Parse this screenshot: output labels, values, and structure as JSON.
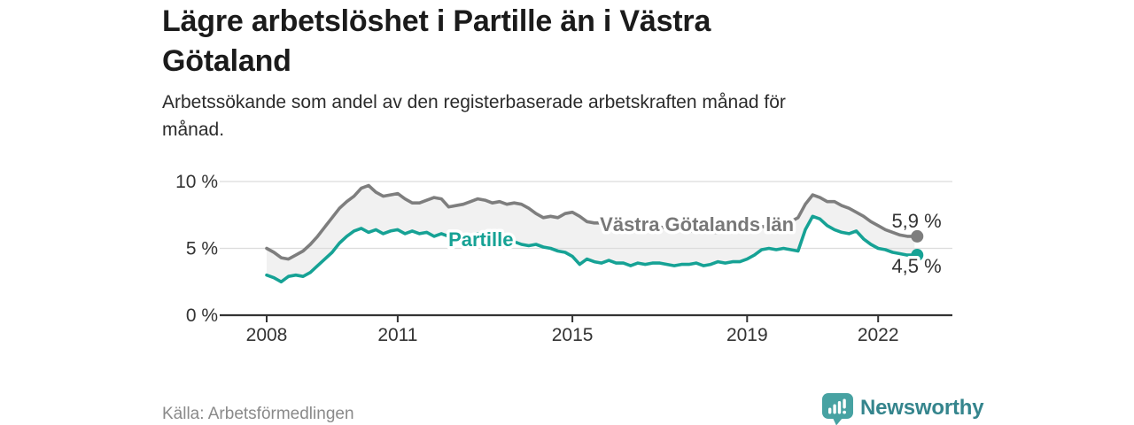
{
  "header": {
    "title": "Lägre arbetslöshet i Partille än i Västra\nGötaland",
    "subtitle": "Arbetssökande som andel av den registerbaserade arbetskraften månad för\nmånad."
  },
  "footer": {
    "source": "Källa: Arbetsförmedlingen",
    "brand": "Newsworthy",
    "logo_icon": "newsworthy-speech-bubble-bar-chart-icon"
  },
  "colors": {
    "accent_teal": "#16a295",
    "line_gray": "#7e7e7e",
    "label_gray": "#787878",
    "band_fill": "#f1f1f1",
    "gridline": "#dcdcdc",
    "axis": "#333333",
    "brand_teal_icon": "#47a2a2",
    "brand_teal_text": "#35858d"
  },
  "chart_data": {
    "type": "line",
    "title": "Lägre arbetslöshet i Partille än i Västra Götaland",
    "subtitle": "Arbetssökande som andel av den registerbaserade arbetskraften månad för månad.",
    "x_start": 2008.0,
    "x_step": 0.16667,
    "x_axis": {
      "ticks": [
        2008,
        2011,
        2015,
        2019,
        2022
      ],
      "tick_labels": [
        "2008",
        "2011",
        "2015",
        "2019",
        "2022"
      ],
      "min": 2008,
      "max": 2023.1
    },
    "y_axis": {
      "ticks": [
        0,
        5,
        10
      ],
      "tick_labels": [
        "0 %",
        "5 %",
        "10 %"
      ],
      "min": 0,
      "max": 10.3,
      "grid": true
    },
    "legend_position": "inline-labels",
    "band_fill": "#f1f1f1",
    "series": [
      {
        "name": "Västra Götalands län",
        "color": "#7e7e7e",
        "end_value": 5.9,
        "end_label": "5,9 %",
        "values": [
          5.0,
          4.7,
          4.3,
          4.2,
          4.5,
          4.8,
          5.3,
          5.9,
          6.6,
          7.3,
          8.0,
          8.5,
          8.9,
          9.5,
          9.7,
          9.2,
          8.9,
          9.0,
          9.1,
          8.7,
          8.4,
          8.4,
          8.6,
          8.8,
          8.7,
          8.1,
          8.2,
          8.3,
          8.5,
          8.7,
          8.6,
          8.4,
          8.5,
          8.3,
          8.4,
          8.3,
          8.0,
          7.6,
          7.3,
          7.4,
          7.3,
          7.6,
          7.7,
          7.4,
          7.0,
          6.9,
          6.9,
          6.8,
          6.9,
          7.0,
          6.9,
          6.8,
          6.8,
          6.7,
          6.6,
          6.5,
          6.4,
          6.4,
          6.3,
          6.3,
          6.3,
          6.2,
          6.2,
          6.3,
          6.3,
          6.4,
          6.5,
          6.6,
          6.6,
          6.7,
          6.8,
          6.9,
          7.0,
          7.3,
          8.3,
          9.0,
          8.8,
          8.5,
          8.5,
          8.2,
          8.0,
          7.7,
          7.4,
          7.0,
          6.7,
          6.4,
          6.2,
          6.0,
          5.9,
          5.9
        ]
      },
      {
        "name": "Partille",
        "color": "#16a295",
        "end_value": 4.5,
        "end_label": "4,5 %",
        "values": [
          3.0,
          2.8,
          2.5,
          2.9,
          3.0,
          2.9,
          3.2,
          3.7,
          4.2,
          4.7,
          5.4,
          5.9,
          6.3,
          6.5,
          6.2,
          6.4,
          6.1,
          6.3,
          6.4,
          6.1,
          6.3,
          6.1,
          6.2,
          5.9,
          6.1,
          5.9,
          6.0,
          5.8,
          5.9,
          6.1,
          5.9,
          5.8,
          5.7,
          5.6,
          5.5,
          5.3,
          5.2,
          5.3,
          5.1,
          5.0,
          4.8,
          4.7,
          4.4,
          3.8,
          4.2,
          4.0,
          3.9,
          4.1,
          3.9,
          3.9,
          3.7,
          3.9,
          3.8,
          3.9,
          3.9,
          3.8,
          3.7,
          3.8,
          3.8,
          3.9,
          3.7,
          3.8,
          4.0,
          3.9,
          4.0,
          4.0,
          4.2,
          4.5,
          4.9,
          5.0,
          4.9,
          5.0,
          4.9,
          4.8,
          6.4,
          7.4,
          7.2,
          6.7,
          6.4,
          6.2,
          6.1,
          6.3,
          5.7,
          5.3,
          5.0,
          4.9,
          4.7,
          4.6,
          4.5,
          4.5
        ]
      }
    ],
    "annotations": [
      {
        "id": "series-label-vastra-gotaland",
        "text": "Västra Götalands län",
        "x": 2015.63,
        "y": 6.29,
        "color": "#787878",
        "bold": true,
        "size": 22,
        "anchor": "start"
      },
      {
        "id": "series-label-partille",
        "text": "Partille",
        "x": 2012.16,
        "y": 5.17,
        "color": "#16a295",
        "bold": true,
        "size": 22,
        "anchor": "start"
      },
      {
        "id": "end-value-vastra-gotaland",
        "text": "5,9 %",
        "x": 2022.88,
        "y": 6.56,
        "color": "#333333",
        "bold": false,
        "size": 22,
        "anchor": "middle"
      },
      {
        "id": "end-value-partille",
        "text": "4,5 %",
        "x": 2022.88,
        "y": 3.18,
        "color": "#333333",
        "bold": false,
        "size": 22,
        "anchor": "middle"
      }
    ]
  }
}
